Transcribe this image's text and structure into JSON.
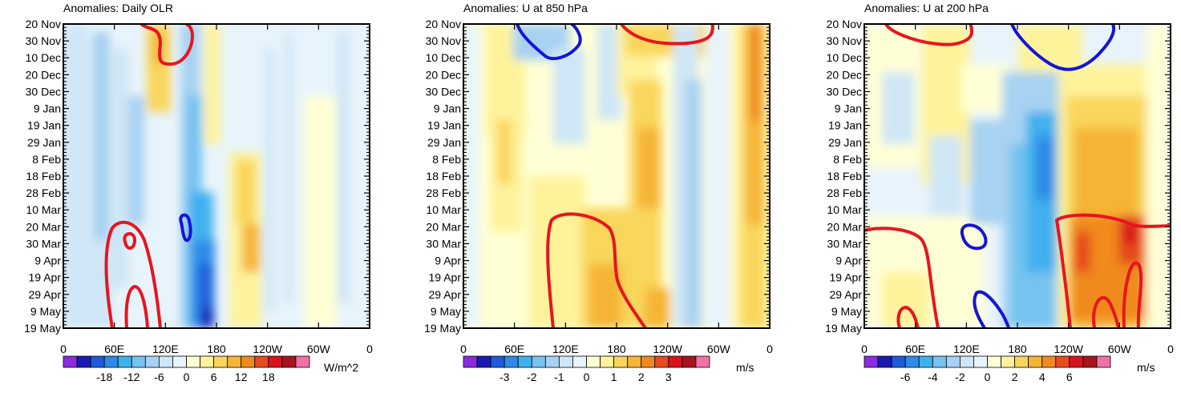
{
  "chart_data": [
    {
      "type": "heatmap",
      "title": "Anomalies: Daily OLR",
      "units": "W/m^2",
      "x_ticks": [
        "0",
        "60E",
        "120E",
        "180",
        "120W",
        "60W",
        "0"
      ],
      "y_ticks": [
        "20 Nov",
        "30 Nov",
        "10 Dec",
        "20 Dec",
        "30 Dec",
        "9 Jan",
        "19 Jan",
        "29 Jan",
        "8 Feb",
        "18 Feb",
        "28 Feb",
        "10 Mar",
        "20 Mar",
        "30 Mar",
        "9 Apr",
        "19 Apr",
        "29 Apr",
        "9 May",
        "19 May"
      ],
      "colorbar_labels": [
        "-18",
        "-12",
        "-6",
        "0",
        "6",
        "12",
        "18"
      ],
      "colorbar_colors": [
        "#8a2be2",
        "#1a1ab3",
        "#1e5adc",
        "#2e8ae6",
        "#3fb0ef",
        "#75c3f0",
        "#a7d2f2",
        "#cfe6f6",
        "#e8f4fb",
        "#ffffd6",
        "#fef39b",
        "#f9d65b",
        "#f6b436",
        "#f08a1e",
        "#e64a1e",
        "#d8141e",
        "#a8141e",
        "#f070a8"
      ]
    },
    {
      "type": "heatmap",
      "title": "Anomalies: U at 850 hPa",
      "units": "m/s",
      "x_ticks": [
        "0",
        "60E",
        "120E",
        "180",
        "120W",
        "60W",
        "0"
      ],
      "y_ticks": [
        "20 Nov",
        "30 Nov",
        "10 Dec",
        "20 Dec",
        "30 Dec",
        "9 Jan",
        "19 Jan",
        "29 Jan",
        "8 Feb",
        "18 Feb",
        "28 Feb",
        "10 Mar",
        "20 Mar",
        "30 Mar",
        "9 Apr",
        "19 Apr",
        "29 Apr",
        "9 May",
        "19 May"
      ],
      "colorbar_labels": [
        "-3",
        "-2",
        "-1",
        "0",
        "1",
        "2",
        "3"
      ],
      "colorbar_colors": [
        "#8a2be2",
        "#1a1ab3",
        "#1e5adc",
        "#2e8ae6",
        "#3fb0ef",
        "#75c3f0",
        "#a7d2f2",
        "#cfe6f6",
        "#e8f4fb",
        "#ffffd6",
        "#fef39b",
        "#f9d65b",
        "#f6b436",
        "#f08a1e",
        "#e64a1e",
        "#d8141e",
        "#a8141e",
        "#f070a8"
      ]
    },
    {
      "type": "heatmap",
      "title": "Anomalies: U at 200 hPa",
      "units": "m/s",
      "x_ticks": [
        "0",
        "60E",
        "120E",
        "180",
        "120W",
        "60W",
        "0"
      ],
      "y_ticks": [
        "20 Nov",
        "30 Nov",
        "10 Dec",
        "20 Dec",
        "30 Dec",
        "9 Jan",
        "19 Jan",
        "29 Jan",
        "8 Feb",
        "18 Feb",
        "28 Feb",
        "10 Mar",
        "20 Mar",
        "30 Mar",
        "9 Apr",
        "19 Apr",
        "29 Apr",
        "9 May",
        "19 May"
      ],
      "colorbar_labels": [
        "-6",
        "-4",
        "-2",
        "0",
        "2",
        "4",
        "6"
      ],
      "colorbar_colors": [
        "#8a2be2",
        "#1a1ab3",
        "#1e5adc",
        "#2e8ae6",
        "#3fb0ef",
        "#75c3f0",
        "#a7d2f2",
        "#cfe6f6",
        "#e8f4fb",
        "#ffffd6",
        "#fef39b",
        "#f9d65b",
        "#f6b436",
        "#f08a1e",
        "#e64a1e",
        "#d8141e",
        "#a8141e",
        "#f070a8"
      ]
    }
  ]
}
